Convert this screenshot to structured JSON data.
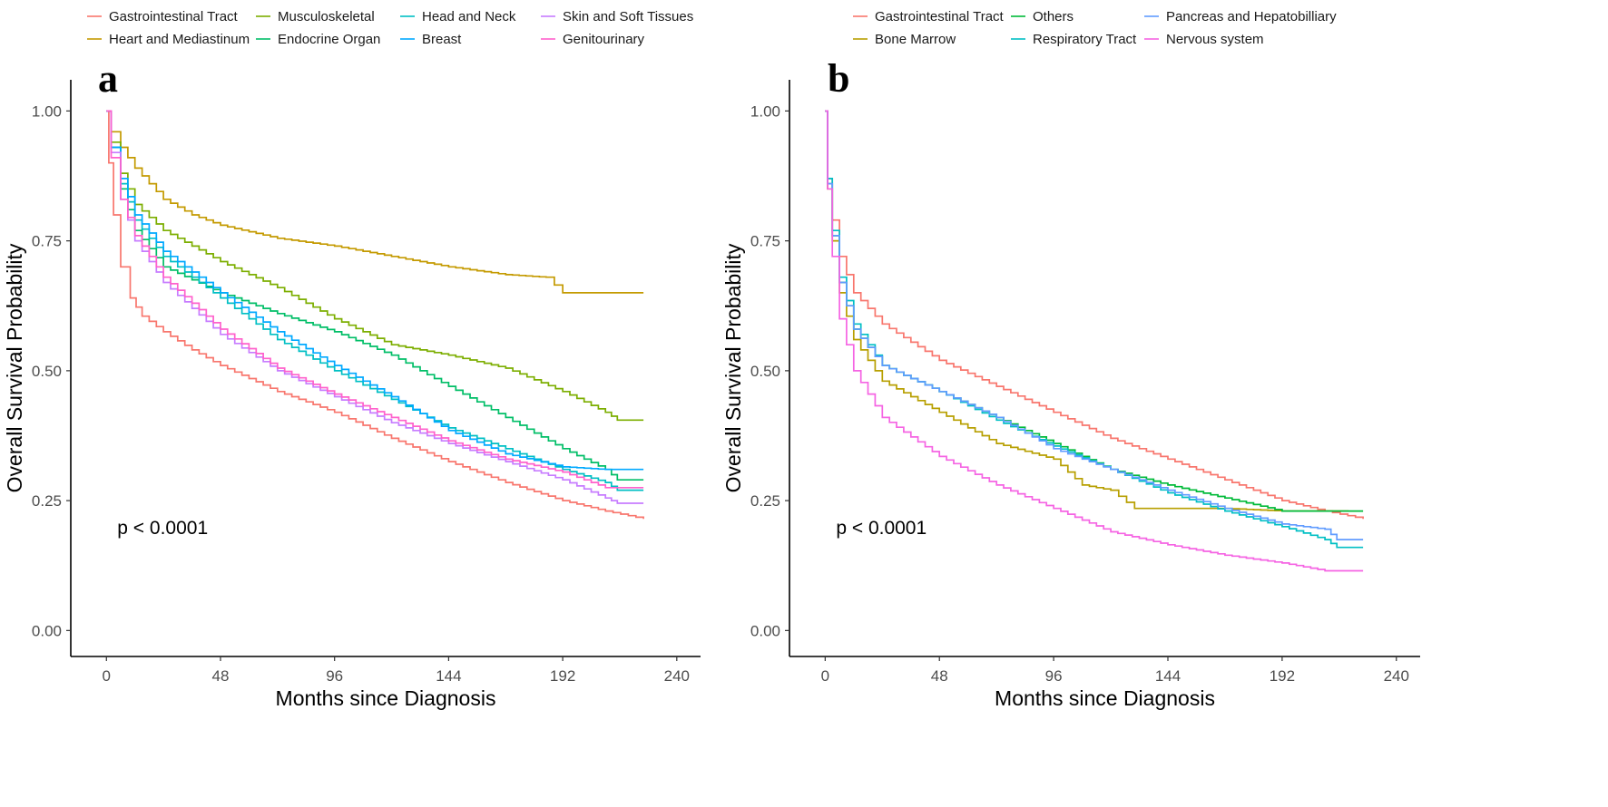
{
  "chart_data": [
    {
      "panel": "a",
      "type": "line",
      "pvalue": "p < 0.0001",
      "xlabel": "Months since Diagnosis",
      "ylabel": "Overall Survival Probability",
      "xlim": [
        -15,
        250
      ],
      "ylim": [
        -0.05,
        1.06
      ],
      "xticks": [
        0,
        48,
        96,
        144,
        192,
        240
      ],
      "yticks": [
        "0.00",
        "0.25",
        "0.50",
        "0.75",
        "1.00"
      ],
      "legend_position": "top",
      "series": [
        {
          "name": "Gastrointestinal Tract",
          "color": "#F8766D",
          "points": [
            [
              0,
              1.0
            ],
            [
              1,
              0.9
            ],
            [
              3,
              0.8
            ],
            [
              6,
              0.7
            ],
            [
              10,
              0.64
            ],
            [
              15,
              0.605
            ],
            [
              24,
              0.575
            ],
            [
              36,
              0.54
            ],
            [
              48,
              0.51
            ],
            [
              72,
              0.46
            ],
            [
              96,
              0.42
            ],
            [
              120,
              0.37
            ],
            [
              144,
              0.325
            ],
            [
              168,
              0.285
            ],
            [
              192,
              0.25
            ],
            [
              210,
              0.23
            ],
            [
              226,
              0.215
            ]
          ]
        },
        {
          "name": "Heart and Mediastinum",
          "color": "#C49A00",
          "points": [
            [
              0,
              1.0
            ],
            [
              2,
              0.96
            ],
            [
              6,
              0.93
            ],
            [
              12,
              0.89
            ],
            [
              24,
              0.83
            ],
            [
              36,
              0.8
            ],
            [
              48,
              0.78
            ],
            [
              72,
              0.755
            ],
            [
              96,
              0.74
            ],
            [
              120,
              0.72
            ],
            [
              144,
              0.7
            ],
            [
              168,
              0.685
            ],
            [
              185,
              0.68
            ],
            [
              192,
              0.65
            ],
            [
              226,
              0.65
            ]
          ]
        },
        {
          "name": "Musculoskeletal",
          "color": "#7CAE00",
          "points": [
            [
              0,
              1.0
            ],
            [
              2,
              0.94
            ],
            [
              6,
              0.88
            ],
            [
              12,
              0.82
            ],
            [
              24,
              0.77
            ],
            [
              48,
              0.71
            ],
            [
              72,
              0.66
            ],
            [
              96,
              0.6
            ],
            [
              120,
              0.55
            ],
            [
              144,
              0.53
            ],
            [
              168,
              0.505
            ],
            [
              192,
              0.46
            ],
            [
              210,
              0.42
            ],
            [
              215,
              0.405
            ],
            [
              226,
              0.405
            ]
          ]
        },
        {
          "name": "Endocrine Organ",
          "color": "#00BE67",
          "points": [
            [
              0,
              1.0
            ],
            [
              2,
              0.93
            ],
            [
              6,
              0.85
            ],
            [
              12,
              0.77
            ],
            [
              24,
              0.7
            ],
            [
              48,
              0.65
            ],
            [
              72,
              0.61
            ],
            [
              96,
              0.575
            ],
            [
              120,
              0.53
            ],
            [
              144,
              0.47
            ],
            [
              168,
              0.41
            ],
            [
              192,
              0.35
            ],
            [
              210,
              0.31
            ],
            [
              215,
              0.29
            ],
            [
              226,
              0.29
            ]
          ]
        },
        {
          "name": "Head and Neck",
          "color": "#00BFC4",
          "points": [
            [
              0,
              1.0
            ],
            [
              2,
              0.93
            ],
            [
              6,
              0.86
            ],
            [
              12,
              0.79
            ],
            [
              24,
              0.72
            ],
            [
              48,
              0.64
            ],
            [
              72,
              0.56
            ],
            [
              96,
              0.5
            ],
            [
              120,
              0.445
            ],
            [
              144,
              0.39
            ],
            [
              168,
              0.35
            ],
            [
              192,
              0.31
            ],
            [
              210,
              0.285
            ],
            [
              215,
              0.27
            ],
            [
              226,
              0.27
            ]
          ]
        },
        {
          "name": "Breast",
          "color": "#00A9FF",
          "points": [
            [
              0,
              1.0
            ],
            [
              2,
              0.93
            ],
            [
              6,
              0.87
            ],
            [
              12,
              0.8
            ],
            [
              24,
              0.73
            ],
            [
              48,
              0.65
            ],
            [
              72,
              0.575
            ],
            [
              96,
              0.51
            ],
            [
              120,
              0.45
            ],
            [
              144,
              0.385
            ],
            [
              168,
              0.34
            ],
            [
              192,
              0.315
            ],
            [
              210,
              0.31
            ],
            [
              226,
              0.31
            ]
          ]
        },
        {
          "name": "Skin and Soft Tissues",
          "color": "#C77CFF",
          "points": [
            [
              0,
              1.0
            ],
            [
              2,
              0.92
            ],
            [
              6,
              0.83
            ],
            [
              12,
              0.75
            ],
            [
              24,
              0.67
            ],
            [
              48,
              0.57
            ],
            [
              72,
              0.5
            ],
            [
              96,
              0.45
            ],
            [
              120,
              0.4
            ],
            [
              144,
              0.36
            ],
            [
              168,
              0.325
            ],
            [
              192,
              0.29
            ],
            [
              210,
              0.255
            ],
            [
              215,
              0.245
            ],
            [
              226,
              0.245
            ]
          ]
        },
        {
          "name": "Genitourinary",
          "color": "#FF61CC",
          "points": [
            [
              0,
              1.0
            ],
            [
              2,
              0.91
            ],
            [
              6,
              0.83
            ],
            [
              12,
              0.76
            ],
            [
              24,
              0.68
            ],
            [
              48,
              0.58
            ],
            [
              72,
              0.505
            ],
            [
              96,
              0.455
            ],
            [
              120,
              0.41
            ],
            [
              144,
              0.365
            ],
            [
              168,
              0.33
            ],
            [
              192,
              0.305
            ],
            [
              210,
              0.275
            ],
            [
              226,
              0.275
            ]
          ]
        }
      ]
    },
    {
      "panel": "b",
      "type": "line",
      "pvalue": "p < 0.0001",
      "xlabel": "Months since Diagnosis",
      "ylabel": "Overall Survival Probability",
      "xlim": [
        -15,
        250
      ],
      "ylim": [
        -0.05,
        1.06
      ],
      "xticks": [
        0,
        48,
        96,
        144,
        192,
        240
      ],
      "yticks": [
        "0.00",
        "0.25",
        "0.50",
        "0.75",
        "1.00"
      ],
      "legend_position": "top",
      "series": [
        {
          "name": "Gastrointestinal Tract",
          "color": "#F8766D",
          "points": [
            [
              0,
              1.0
            ],
            [
              1,
              0.87
            ],
            [
              3,
              0.79
            ],
            [
              6,
              0.72
            ],
            [
              12,
              0.65
            ],
            [
              24,
              0.59
            ],
            [
              48,
              0.52
            ],
            [
              72,
              0.47
            ],
            [
              96,
              0.42
            ],
            [
              120,
              0.37
            ],
            [
              144,
              0.33
            ],
            [
              168,
              0.29
            ],
            [
              192,
              0.25
            ],
            [
              210,
              0.23
            ],
            [
              226,
              0.215
            ]
          ]
        },
        {
          "name": "Bone Marrow",
          "color": "#B79F00",
          "points": [
            [
              0,
              1.0
            ],
            [
              1,
              0.85
            ],
            [
              3,
              0.75
            ],
            [
              6,
              0.65
            ],
            [
              12,
              0.56
            ],
            [
              24,
              0.48
            ],
            [
              48,
              0.42
            ],
            [
              72,
              0.36
            ],
            [
              96,
              0.33
            ],
            [
              108,
              0.28
            ],
            [
              120,
              0.27
            ],
            [
              130,
              0.235
            ],
            [
              144,
              0.235
            ],
            [
              168,
              0.235
            ],
            [
              192,
              0.23
            ],
            [
              220,
              0.23
            ]
          ]
        },
        {
          "name": "Others",
          "color": "#00BA38",
          "points": [
            [
              0,
              1.0
            ],
            [
              1,
              0.86
            ],
            [
              3,
              0.76
            ],
            [
              6,
              0.67
            ],
            [
              12,
              0.58
            ],
            [
              24,
              0.51
            ],
            [
              48,
              0.46
            ],
            [
              72,
              0.41
            ],
            [
              96,
              0.36
            ],
            [
              120,
              0.31
            ],
            [
              144,
              0.28
            ],
            [
              168,
              0.255
            ],
            [
              192,
              0.23
            ],
            [
              210,
              0.23
            ],
            [
              226,
              0.23
            ]
          ]
        },
        {
          "name": "Respiratory Tract",
          "color": "#00BFC4",
          "points": [
            [
              0,
              1.0
            ],
            [
              1,
              0.87
            ],
            [
              3,
              0.77
            ],
            [
              6,
              0.68
            ],
            [
              12,
              0.59
            ],
            [
              24,
              0.51
            ],
            [
              48,
              0.46
            ],
            [
              72,
              0.405
            ],
            [
              96,
              0.355
            ],
            [
              120,
              0.31
            ],
            [
              144,
              0.265
            ],
            [
              168,
              0.23
            ],
            [
              192,
              0.2
            ],
            [
              210,
              0.175
            ],
            [
              215,
              0.16
            ],
            [
              226,
              0.16
            ]
          ]
        },
        {
          "name": "Pancreas and Hepatobilliary",
          "color": "#619CFF",
          "points": [
            [
              0,
              1.0
            ],
            [
              1,
              0.86
            ],
            [
              3,
              0.76
            ],
            [
              6,
              0.67
            ],
            [
              12,
              0.58
            ],
            [
              24,
              0.51
            ],
            [
              48,
              0.46
            ],
            [
              72,
              0.41
            ],
            [
              96,
              0.35
            ],
            [
              120,
              0.31
            ],
            [
              144,
              0.27
            ],
            [
              168,
              0.235
            ],
            [
              192,
              0.205
            ],
            [
              210,
              0.195
            ],
            [
              215,
              0.175
            ],
            [
              226,
              0.175
            ]
          ]
        },
        {
          "name": "Nervous system",
          "color": "#F564E3",
          "points": [
            [
              0,
              1.0
            ],
            [
              1,
              0.85
            ],
            [
              3,
              0.72
            ],
            [
              6,
              0.6
            ],
            [
              12,
              0.5
            ],
            [
              24,
              0.41
            ],
            [
              48,
              0.335
            ],
            [
              72,
              0.28
            ],
            [
              96,
              0.235
            ],
            [
              120,
              0.19
            ],
            [
              144,
              0.165
            ],
            [
              168,
              0.145
            ],
            [
              192,
              0.13
            ],
            [
              210,
              0.115
            ],
            [
              226,
              0.115
            ]
          ]
        }
      ]
    }
  ]
}
